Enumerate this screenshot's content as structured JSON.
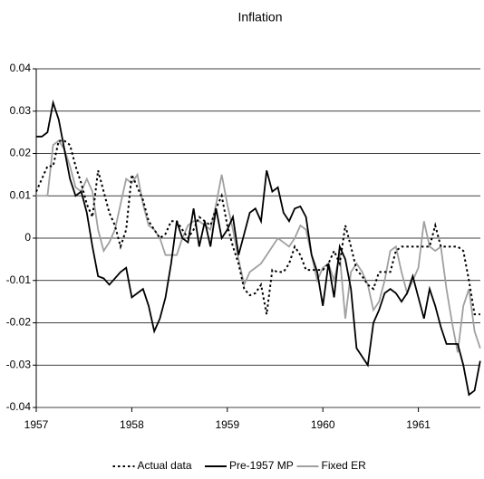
{
  "chart_data": {
    "type": "line",
    "title": "Inflation",
    "categories": [
      "1957",
      null,
      null,
      null,
      null,
      null,
      null,
      null,
      null,
      null,
      null,
      null,
      null,
      null,
      null,
      null,
      null,
      "1958",
      null,
      null,
      null,
      null,
      null,
      null,
      null,
      null,
      null,
      null,
      null,
      null,
      null,
      null,
      null,
      null,
      "1959",
      null,
      null,
      null,
      null,
      null,
      null,
      null,
      null,
      null,
      null,
      null,
      null,
      null,
      null,
      null,
      null,
      "1960",
      null,
      null,
      null,
      null,
      null,
      null,
      null,
      null,
      null,
      null,
      null,
      null,
      null,
      null,
      null,
      null,
      "1961",
      null,
      null,
      null,
      null,
      null,
      null,
      null,
      null,
      null,
      null,
      null
    ],
    "series": [
      {
        "name": "Actual data",
        "color": "#000000",
        "dash": "dotted",
        "values": [
          0.011,
          0.014,
          0.017,
          0.017,
          0.023,
          0.023,
          0.022,
          0.017,
          0.013,
          0.008,
          0.005,
          0.016,
          0.011,
          0.006,
          0.003,
          -0.002,
          0.002,
          0.015,
          0.012,
          0.009,
          0.004,
          0.002,
          0.0,
          0.001,
          0.004,
          0.004,
          0.002,
          0.0,
          0.002,
          0.005,
          0.004,
          0.003,
          0.007,
          0.01,
          0.003,
          -0.002,
          -0.006,
          -0.012,
          -0.0135,
          -0.013,
          -0.011,
          -0.018,
          -0.0075,
          -0.008,
          -0.008,
          -0.006,
          -0.002,
          -0.004,
          -0.0075,
          -0.0075,
          -0.0075,
          -0.0075,
          -0.006,
          -0.003,
          -0.006,
          0.003,
          -0.002,
          -0.0075,
          -0.009,
          -0.011,
          -0.012,
          -0.008,
          -0.008,
          -0.008,
          -0.003,
          -0.002,
          -0.002,
          -0.002,
          -0.002,
          -0.002,
          -0.002,
          0.003,
          -0.002,
          -0.002,
          -0.002,
          -0.002,
          -0.003,
          -0.01,
          -0.018,
          -0.018
        ]
      },
      {
        "name": "Pre-1957 MP",
        "color": "#000000",
        "dash": "solid",
        "values": [
          0.024,
          0.024,
          0.025,
          0.032,
          0.028,
          0.021,
          0.014,
          0.01,
          0.011,
          0.006,
          -0.002,
          -0.009,
          -0.0095,
          -0.011,
          -0.0095,
          -0.008,
          -0.007,
          -0.014,
          -0.013,
          -0.012,
          -0.016,
          -0.022,
          -0.019,
          -0.014,
          -0.006,
          0.004,
          0.0,
          -0.001,
          0.007,
          -0.002,
          0.004,
          -0.002,
          0.007,
          0.0,
          0.002,
          0.005,
          -0.004,
          0.001,
          0.006,
          0.007,
          0.004,
          0.016,
          0.011,
          0.012,
          0.006,
          0.004,
          0.007,
          0.0075,
          0.005,
          -0.004,
          -0.008,
          -0.016,
          -0.006,
          -0.014,
          -0.002,
          -0.005,
          -0.012,
          -0.026,
          -0.028,
          -0.03,
          -0.02,
          -0.017,
          -0.013,
          -0.012,
          -0.013,
          -0.015,
          -0.013,
          -0.009,
          -0.014,
          -0.019,
          -0.012,
          -0.016,
          -0.021,
          -0.025,
          -0.025,
          -0.025,
          -0.03,
          -0.037,
          -0.036,
          -0.029
        ]
      },
      {
        "name": "Fixed ER",
        "color": "#a0a0a0",
        "dash": "solid",
        "values": [
          0.01,
          0.01,
          0.01,
          0.022,
          0.023,
          0.021,
          0.017,
          0.012,
          0.011,
          0.014,
          0.011,
          0.002,
          -0.003,
          -0.001,
          0.002,
          0.008,
          0.014,
          0.013,
          0.015,
          0.008,
          0.003,
          0.002,
          0.0,
          -0.004,
          -0.004,
          -0.004,
          0.0,
          0.003,
          0.004,
          0.004,
          0.003,
          0.002,
          0.008,
          0.015,
          0.008,
          0.002,
          -0.005,
          -0.011,
          -0.008,
          -0.007,
          -0.006,
          -0.004,
          -0.002,
          0.0,
          -0.001,
          -0.002,
          0.0,
          0.003,
          0.002,
          -0.004,
          -0.01,
          -0.007,
          -0.006,
          -0.01,
          -0.004,
          -0.019,
          -0.008,
          -0.006,
          -0.008,
          -0.011,
          -0.017,
          -0.015,
          -0.01,
          -0.003,
          -0.002,
          -0.008,
          -0.013,
          -0.01,
          -0.007,
          0.004,
          -0.002,
          -0.003,
          -0.002,
          -0.012,
          -0.02,
          -0.027,
          -0.016,
          -0.012,
          -0.022,
          -0.026
        ]
      }
    ],
    "ylim": [
      -0.04,
      0.04
    ],
    "yticks": [
      -0.04,
      -0.03,
      -0.02,
      -0.01,
      0,
      0.01,
      0.02,
      0.03,
      0.04
    ],
    "grid": true,
    "legend": "bottom"
  }
}
